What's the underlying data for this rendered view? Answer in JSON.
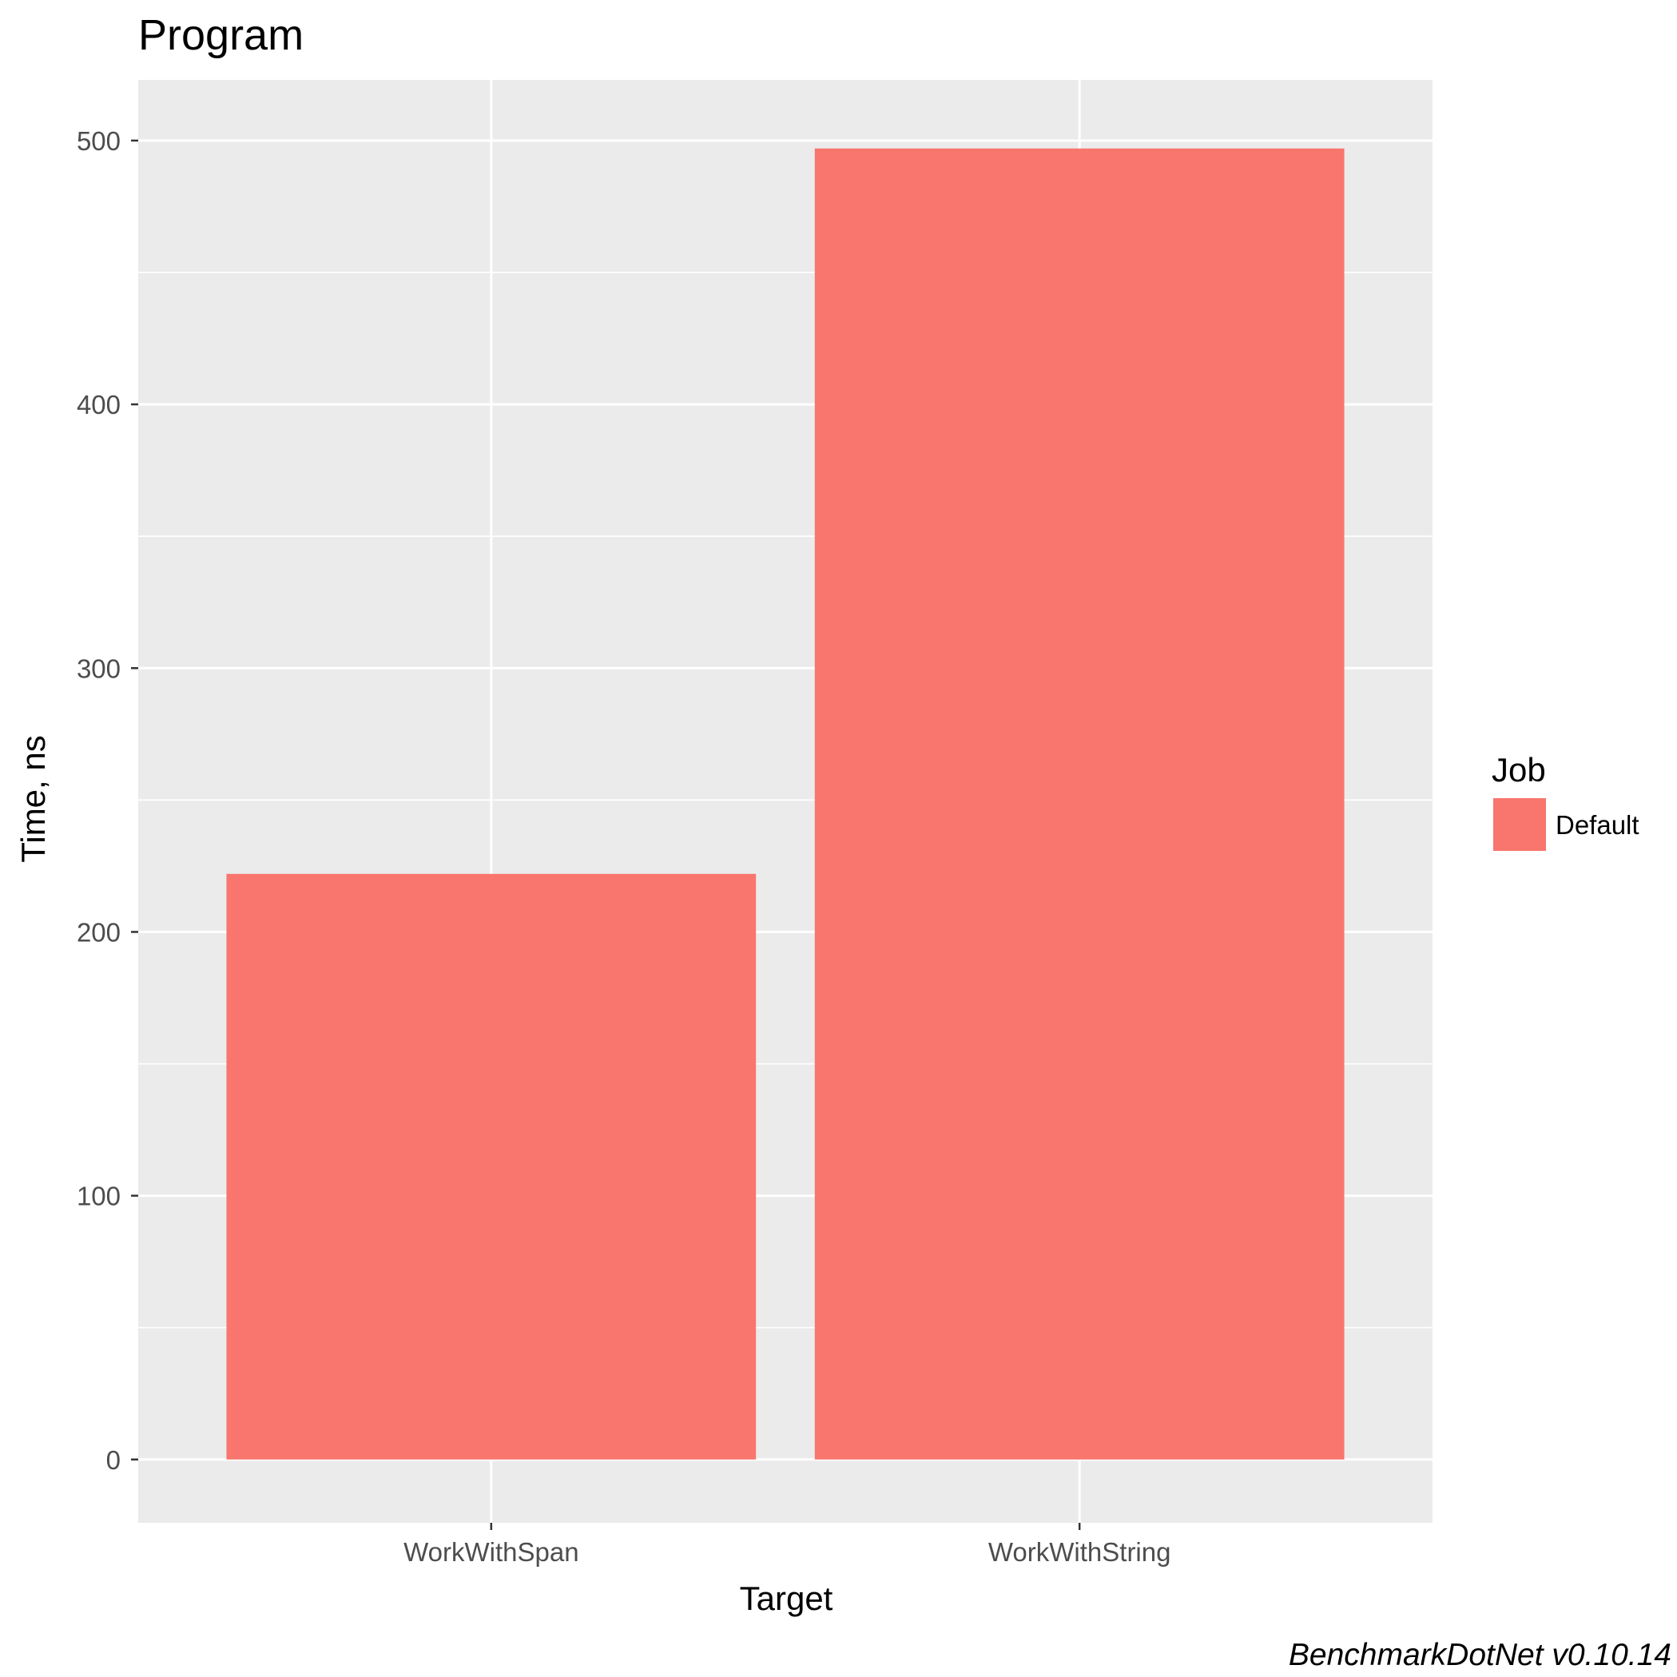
{
  "chart_data": {
    "type": "bar",
    "title": "Program",
    "xlabel": "Target",
    "ylabel": "Time, ns",
    "categories": [
      "WorkWithSpan",
      "WorkWithString"
    ],
    "series": [
      {
        "name": "Default",
        "values": [
          222,
          497
        ]
      }
    ],
    "ylim": [
      -24,
      523
    ],
    "yticks": [
      0,
      100,
      200,
      300,
      400,
      500
    ],
    "ytick_labels": [
      "0",
      "100",
      "200",
      "300",
      "400",
      "500"
    ],
    "grid": true,
    "legend": {
      "title": "Job",
      "position": "right",
      "entries": [
        "Default"
      ]
    },
    "caption": "BenchmarkDotNet v0.10.14",
    "colors": {
      "panel_background": "#ebebeb",
      "grid": "#ffffff",
      "bar": "#f8766d",
      "tick": "#333333"
    }
  }
}
